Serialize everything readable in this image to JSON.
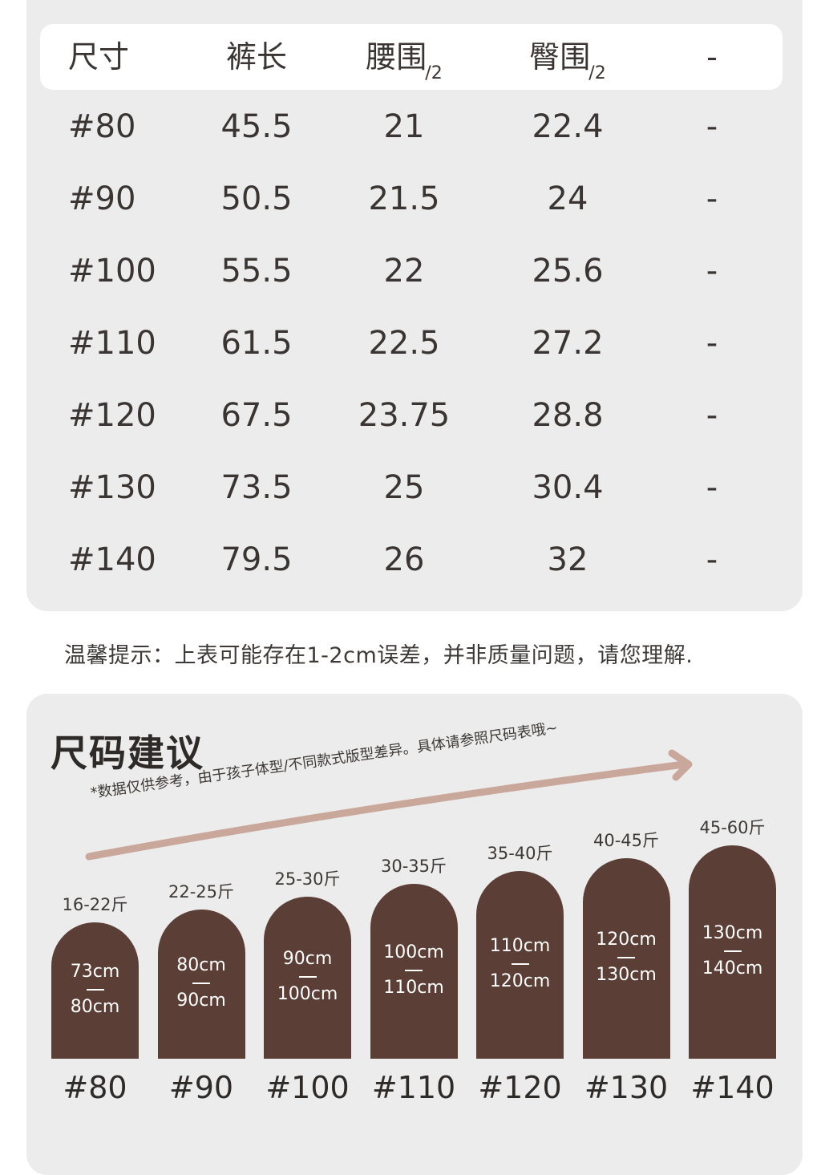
{
  "size_table": {
    "headers": [
      {
        "text": "尺寸",
        "sub": ""
      },
      {
        "text": "裤长",
        "sub": ""
      },
      {
        "text": "腰围",
        "sub": "/2"
      },
      {
        "text": "臀围",
        "sub": "/2"
      },
      {
        "text": "-",
        "sub": ""
      }
    ],
    "rows": [
      [
        "#80",
        "45.5",
        "21",
        "22.4",
        "-"
      ],
      [
        "#90",
        "50.5",
        "21.5",
        "24",
        "-"
      ],
      [
        "#100",
        "55.5",
        "22",
        "25.6",
        "-"
      ],
      [
        "#110",
        "61.5",
        "22.5",
        "27.2",
        "-"
      ],
      [
        "#120",
        "67.5",
        "23.75",
        "28.8",
        "-"
      ],
      [
        "#130",
        "73.5",
        "25",
        "30.4",
        "-"
      ],
      [
        "#140",
        "79.5",
        "26",
        "32",
        "-"
      ]
    ]
  },
  "note": "温馨提示：上表可能存在1-2cm误差，并非质量问题，请您理解.",
  "recommendation": {
    "title": "尺码建议",
    "disclaimer": "*数据仅供参考，由于孩子体型/不同款式版型差异。具体请参照尺码表哦~",
    "accent_color": "#c9a79a",
    "bar_color": "#5b3e35",
    "items": [
      {
        "size": "#80",
        "weight": "16-22斤",
        "height_from": "73cm",
        "height_to": "80cm"
      },
      {
        "size": "#90",
        "weight": "22-25斤",
        "height_from": "80cm",
        "height_to": "90cm"
      },
      {
        "size": "#100",
        "weight": "25-30斤",
        "height_from": "90cm",
        "height_to": "100cm"
      },
      {
        "size": "#110",
        "weight": "30-35斤",
        "height_from": "100cm",
        "height_to": "110cm"
      },
      {
        "size": "#120",
        "weight": "35-40斤",
        "height_from": "110cm",
        "height_to": "120cm"
      },
      {
        "size": "#130",
        "weight": "40-45斤",
        "height_from": "120cm",
        "height_to": "130cm"
      },
      {
        "size": "#140",
        "weight": "45-60斤",
        "height_from": "130cm",
        "height_to": "140cm"
      }
    ]
  }
}
